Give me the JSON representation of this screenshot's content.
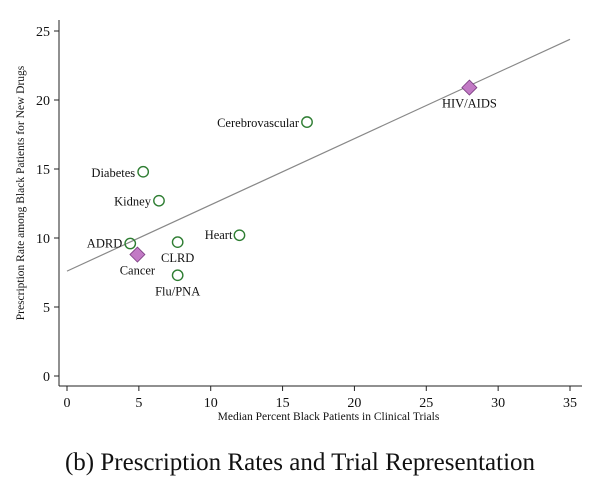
{
  "chart_data": {
    "type": "scatter",
    "title": "",
    "xlabel": "Median Percent Black Patients in Clinical Trials",
    "ylabel": "Prescription Rate among Black Patients for New Drugs",
    "xlim": [
      0,
      35
    ],
    "ylim": [
      0,
      25
    ],
    "xticks": [
      0,
      5,
      10,
      15,
      20,
      25,
      30,
      35
    ],
    "yticks": [
      0,
      5,
      10,
      15,
      20,
      25
    ],
    "grid": false,
    "legend": "none",
    "series": [
      {
        "name": "circle markers",
        "marker": "circle",
        "color": "#2e7d32",
        "points": [
          {
            "label": "Cerebrovascular",
            "x": 16.7,
            "y": 18.4
          },
          {
            "label": "Diabetes",
            "x": 5.3,
            "y": 14.8
          },
          {
            "label": "Kidney",
            "x": 6.4,
            "y": 12.7
          },
          {
            "label": "Heart",
            "x": 12.0,
            "y": 10.2
          },
          {
            "label": "ADRD",
            "x": 4.4,
            "y": 9.6
          },
          {
            "label": "CLRD",
            "x": 7.7,
            "y": 9.7
          },
          {
            "label": "Flu/PNA",
            "x": 7.7,
            "y": 7.3
          }
        ]
      },
      {
        "name": "diamond markers",
        "marker": "diamond",
        "color": "#c27ac5",
        "points": [
          {
            "label": "HIV/AIDS",
            "x": 28.0,
            "y": 20.9
          },
          {
            "label": "Cancer",
            "x": 4.9,
            "y": 8.8
          }
        ]
      }
    ],
    "fit_line": {
      "x": [
        0,
        35
      ],
      "y": [
        7.6,
        24.4
      ],
      "color": "#888888"
    }
  },
  "caption": "(b) Prescription Rates and Trial Representation"
}
